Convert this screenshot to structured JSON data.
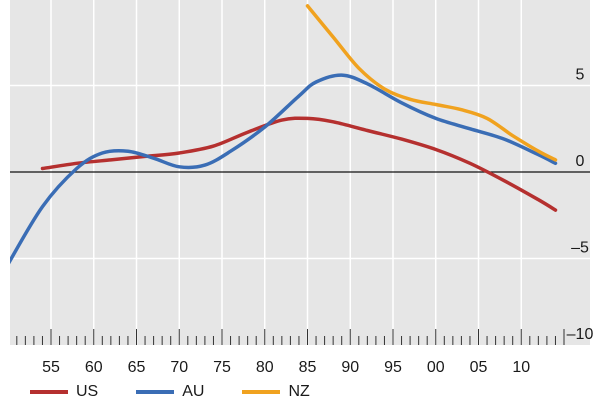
{
  "chart_data": {
    "type": "line",
    "x_ticks": [
      "55",
      "60",
      "65",
      "70",
      "75",
      "80",
      "85",
      "90",
      "95",
      "00",
      "05",
      "10"
    ],
    "y_ticks": [
      "5",
      "0",
      "–5",
      "–10"
    ],
    "ylim": [
      -10,
      9.5
    ],
    "xlim": [
      1950,
      2016
    ],
    "grid": true,
    "legend_position": "bottom-left",
    "series": [
      {
        "name": "US",
        "color": "#b5302f",
        "x": [
          1954,
          1958,
          1962,
          1966,
          1970,
          1974,
          1978,
          1982,
          1985,
          1988,
          1992,
          1996,
          2000,
          2004,
          2008,
          2012,
          2014
        ],
        "y": [
          0.2,
          0.5,
          0.7,
          0.9,
          1.1,
          1.5,
          2.3,
          3.0,
          3.1,
          2.9,
          2.4,
          1.9,
          1.3,
          0.5,
          -0.5,
          -1.6,
          -2.2
        ]
      },
      {
        "name": "AU",
        "color": "#3a6db5",
        "x": [
          1950,
          1954,
          1958,
          1961,
          1964,
          1967,
          1970,
          1973,
          1976,
          1980,
          1984,
          1986,
          1989,
          1992,
          1996,
          2000,
          2004,
          2008,
          2012,
          2014
        ],
        "y": [
          -5.3,
          -2.0,
          0.2,
          1.1,
          1.2,
          0.8,
          0.3,
          0.4,
          1.2,
          2.6,
          4.4,
          5.2,
          5.6,
          5.1,
          4.0,
          3.1,
          2.5,
          1.9,
          1.0,
          0.5
        ]
      },
      {
        "name": "NZ",
        "color": "#f0a21f",
        "x": [
          1985,
          1988,
          1991,
          1994,
          1997,
          2000,
          2003,
          2006,
          2009,
          2012,
          2014
        ],
        "y": [
          9.6,
          7.8,
          6.0,
          4.8,
          4.2,
          3.9,
          3.6,
          3.1,
          2.1,
          1.2,
          0.7
        ]
      }
    ]
  }
}
